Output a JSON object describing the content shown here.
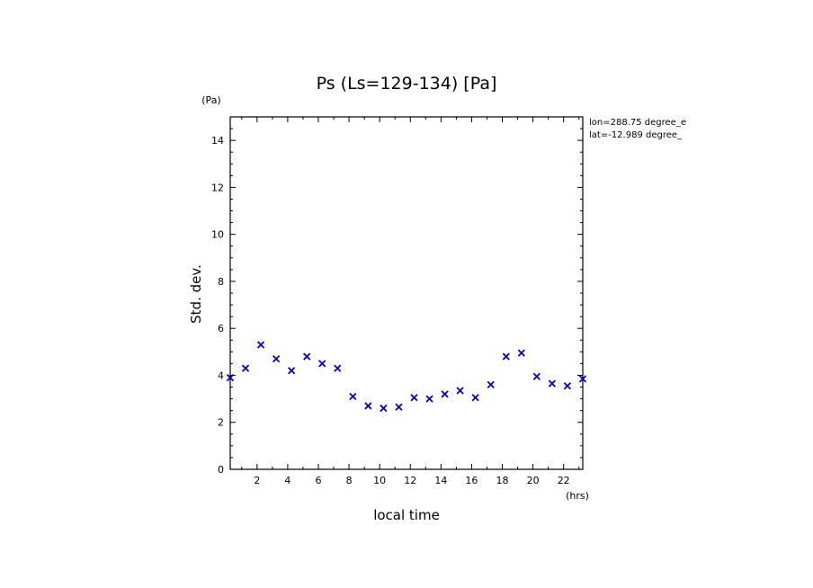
{
  "chart_data": {
    "type": "scatter",
    "title": "Ps (Ls=129-134) [Pa]",
    "xlabel": "local time",
    "ylabel": "Std. dev.",
    "x_unit": "(hrs)",
    "y_unit": "(Pa)",
    "xlim": [
      0.25,
      23.25
    ],
    "ylim": [
      0,
      15
    ],
    "x_ticks": [
      2,
      4,
      6,
      8,
      10,
      12,
      14,
      16,
      18,
      20,
      22
    ],
    "y_ticks": [
      0,
      2,
      4,
      6,
      8,
      10,
      12,
      14
    ],
    "grid": false,
    "marker": "x",
    "marker_color": "#0000cc",
    "annotations": [
      "lon=288.75 degree_e",
      "lat=-12.989 degree_"
    ],
    "series": [
      {
        "x": [
          0.25,
          1.25,
          2.25,
          3.25,
          4.25,
          5.25,
          6.25,
          7.25,
          8.25,
          9.25,
          10.25,
          11.25,
          12.25,
          13.25,
          14.25,
          15.25,
          16.25,
          17.25,
          18.25,
          19.25,
          20.25,
          21.25,
          22.25,
          23.25
        ],
        "values": [
          3.9,
          4.3,
          5.3,
          4.7,
          4.2,
          4.8,
          4.5,
          4.3,
          3.1,
          2.7,
          2.6,
          2.65,
          3.05,
          3.0,
          3.2,
          3.35,
          3.05,
          3.6,
          4.8,
          4.95,
          3.95,
          3.65,
          3.55,
          3.85
        ]
      }
    ]
  }
}
